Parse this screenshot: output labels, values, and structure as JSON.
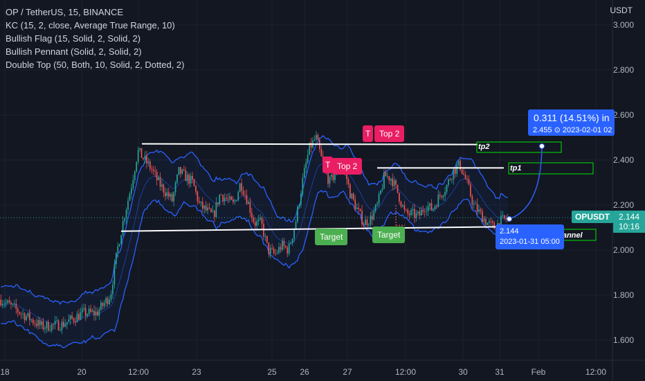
{
  "legend": {
    "symbol": "OP / TetherUS, 15, BINANCE",
    "indicators": [
      "KC (15, 2, close, Average True Range, 10)",
      "Bullish Flag (15, Solid, 2, Solid, 2)",
      "Bullish Pennant (Solid, 2, Solid, 2)",
      "Double Top (50, Both, 10, Solid, 2, Dotted, 2)"
    ]
  },
  "axis_unit": "USDT",
  "price_tag": {
    "symbol": "OPUSDT",
    "value": "2.144",
    "countdown": "10:16",
    "color": "#26a69a"
  },
  "cursor_tag": {
    "value": "2.144",
    "time": "2023-01-31 05:00"
  },
  "projection": {
    "line1": "0.311 (14.51%) in",
    "line2": "2.455 ⊙ 2023-02-01  02"
  },
  "labels": {
    "top2_a": "Top 2",
    "top2_b": "Top 2",
    "top2_a_prefix": "T",
    "top2_b_prefix": "T",
    "target_a": "Target",
    "target_b": "Target",
    "tp2": "tp2",
    "tp1": "tp1",
    "channel": "channel"
  },
  "colors": {
    "background": "#131722",
    "up": "#26a69a",
    "down": "#ef5350",
    "keltner": "#2962ff",
    "level": "#ffffff",
    "top_label": "#e91e63",
    "target_label": "#4caf50",
    "tp_box": "#00e600",
    "cursor": "#2962ff"
  },
  "chart_data": {
    "type": "candlestick",
    "x_ticks": [
      "18",
      "20",
      "12:00",
      "23",
      "25",
      "26",
      "27",
      "12:00",
      "30",
      "31",
      "Feb",
      "12:00"
    ],
    "y_ticks": [
      3.0,
      2.8,
      2.6,
      2.4,
      2.2,
      2.0,
      1.8,
      1.6
    ],
    "ylim": [
      1.55,
      3.05
    ],
    "series_shape": [
      [
        0,
        1.78
      ],
      [
        3,
        1.72
      ],
      [
        6,
        1.66
      ],
      [
        9,
        1.67
      ],
      [
        12,
        1.72
      ],
      [
        14,
        1.72
      ],
      [
        16,
        1.8
      ],
      [
        17,
        2.0
      ],
      [
        18,
        2.15
      ],
      [
        19,
        2.28
      ],
      [
        20,
        2.44
      ],
      [
        21,
        2.4
      ],
      [
        22,
        2.36
      ],
      [
        23,
        2.3
      ],
      [
        25,
        2.22
      ],
      [
        26,
        2.35
      ],
      [
        28,
        2.3
      ],
      [
        29,
        2.2
      ],
      [
        31,
        2.15
      ],
      [
        32,
        2.25
      ],
      [
        34,
        2.2
      ],
      [
        35,
        2.3
      ],
      [
        36,
        2.22
      ],
      [
        37,
        2.12
      ],
      [
        38,
        2.12
      ],
      [
        39,
        2.0
      ],
      [
        40,
        1.98
      ],
      [
        41,
        2.02
      ],
      [
        42,
        2.0
      ],
      [
        43,
        2.12
      ],
      [
        44,
        2.3
      ],
      [
        45,
        2.45
      ],
      [
        46,
        2.5
      ],
      [
        47,
        2.38
      ],
      [
        48,
        2.3
      ],
      [
        49,
        2.35
      ],
      [
        50,
        2.38
      ],
      [
        51,
        2.25
      ],
      [
        52,
        2.18
      ],
      [
        53,
        2.12
      ],
      [
        54,
        2.14
      ],
      [
        55,
        2.2
      ],
      [
        56,
        2.33
      ],
      [
        57,
        2.32
      ],
      [
        58,
        2.25
      ],
      [
        59,
        2.16
      ],
      [
        60,
        2.16
      ],
      [
        61,
        2.15
      ],
      [
        62,
        2.2
      ],
      [
        63,
        2.18
      ],
      [
        64,
        2.24
      ],
      [
        65,
        2.28
      ],
      [
        66,
        2.35
      ],
      [
        67,
        2.38
      ],
      [
        68,
        2.3
      ],
      [
        69,
        2.2
      ],
      [
        70,
        2.16
      ],
      [
        71,
        2.12
      ],
      [
        72,
        2.1
      ],
      [
        73,
        2.13
      ],
      [
        74,
        2.14
      ]
    ],
    "levels": {
      "double_top_resistance": 2.472,
      "neckline": 2.087,
      "tp1": 2.365,
      "tp2": 2.456
    },
    "projection": {
      "change": 0.311,
      "percent": 14.51,
      "target": 2.455
    },
    "last_price": 2.144
  }
}
